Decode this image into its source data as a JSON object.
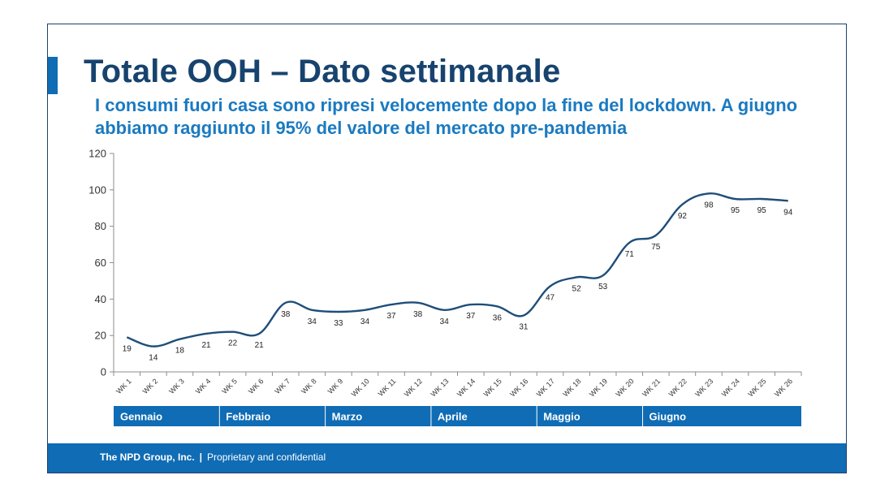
{
  "slide": {
    "title": "Totale OOH – Dato settimanale",
    "subtitle": "I consumi fuori casa sono ripresi velocemente dopo la fine del lockdown. A giugno abbiamo raggiunto il 95% del valore del mercato pre-pandemia"
  },
  "footer": {
    "company": "The NPD Group, Inc.",
    "separator": "|",
    "note": "Proprietary and confidential"
  },
  "colors": {
    "title": "#17436e",
    "subtitle": "#1a7ac1",
    "accent": "#0f6cb5",
    "line": "#1f4e79",
    "month_band": "#0f6cb5"
  },
  "chart_data": {
    "type": "line",
    "title": "",
    "xlabel": "",
    "ylabel": "",
    "categories": [
      "WK 1",
      "WK 2",
      "WK 3",
      "WK 4",
      "WK 5",
      "WK 6",
      "WK 7",
      "WK 8",
      "WK 9",
      "WK 10",
      "WK 11",
      "WK 12",
      "WK 13",
      "WK 14",
      "WK 15",
      "WK 16",
      "WK 17",
      "WK 18",
      "WK 19",
      "WK 20",
      "WK 21",
      "WK 22",
      "WK 23",
      "WK 24",
      "WK 25",
      "WK 26"
    ],
    "values": [
      19,
      14,
      18,
      21,
      22,
      21,
      38,
      34,
      33,
      34,
      37,
      38,
      34,
      37,
      36,
      31,
      47,
      52,
      53,
      71,
      75,
      92,
      98,
      95,
      95,
      94
    ],
    "ylim": [
      0,
      120
    ],
    "yticks": [
      0,
      20,
      40,
      60,
      80,
      100,
      120
    ],
    "grid": false,
    "month_groups": [
      {
        "label": "Gennaio",
        "weeks": 4
      },
      {
        "label": "Febbraio",
        "weeks": 4
      },
      {
        "label": "Marzo",
        "weeks": 4
      },
      {
        "label": "Aprile",
        "weeks": 4
      },
      {
        "label": "Maggio",
        "weeks": 4
      },
      {
        "label": "Giugno",
        "weeks": 6
      }
    ]
  }
}
